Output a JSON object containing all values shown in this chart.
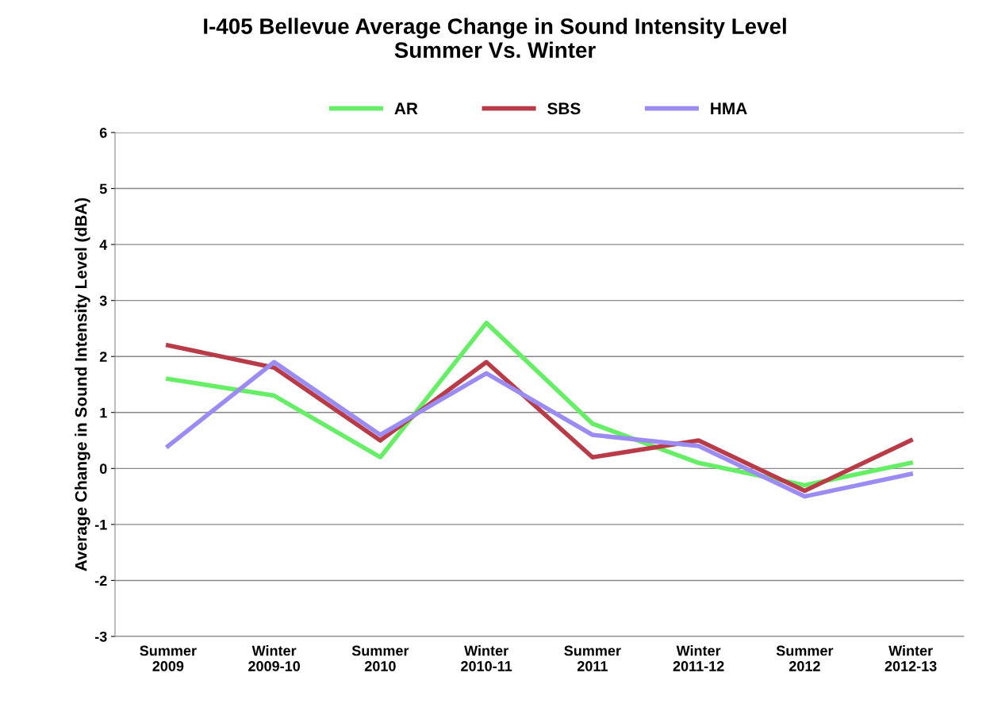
{
  "chart_data": {
    "type": "line",
    "title": "I-405 Bellevue Average Change in Sound Intensity Level\nSummer Vs. Winter",
    "ylabel": "Average Change in Sound Intensity Level (dBA)",
    "categories": [
      "Summer\n2009",
      "Winter\n2009-10",
      "Summer\n2010",
      "Winter\n2010-11",
      "Summer\n2011",
      "Winter\n2011-12",
      "Summer\n2012",
      "Winter\n2012-13"
    ],
    "series": [
      {
        "name": "AR",
        "color": "#66ee66",
        "values": [
          1.6,
          1.3,
          0.2,
          2.6,
          0.8,
          0.1,
          -0.3,
          0.1
        ]
      },
      {
        "name": "SBS",
        "color": "#b83c48",
        "values": [
          2.2,
          1.8,
          0.5,
          1.9,
          0.2,
          0.5,
          -0.4,
          0.5
        ]
      },
      {
        "name": "HMA",
        "color": "#9a8cf2",
        "values": [
          0.4,
          1.9,
          0.6,
          1.7,
          0.6,
          0.4,
          -0.5,
          -0.1
        ]
      }
    ],
    "ylim": [
      -3,
      6
    ],
    "yticks": [
      -3,
      -2,
      -1,
      0,
      1,
      2,
      3,
      4,
      5,
      6
    ],
    "grid": "y",
    "legend": "top",
    "marker": "none",
    "line_style": "solid"
  }
}
